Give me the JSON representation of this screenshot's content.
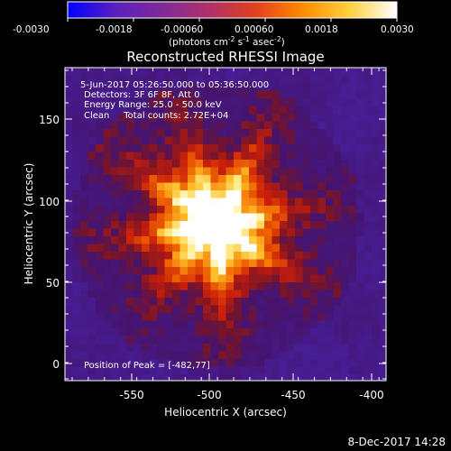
{
  "colorbar": {
    "ticks": [
      "-0.0030",
      "-0.0018",
      "-0.00060",
      "0.00060",
      "0.0018",
      "0.0030"
    ],
    "unit_prefix": "(photons cm",
    "unit_exp1": "-2",
    "unit_mid": " s",
    "unit_exp2": "-1",
    "unit_mid2": " asec",
    "unit_exp3": "-2",
    "unit_suffix": ")",
    "colors": [
      "#0000ff",
      "#5b1fbf",
      "#7f2a98",
      "#b0306a",
      "#e0401c",
      "#ff8c00",
      "#ffd040",
      "#ffffff"
    ]
  },
  "title": "Reconstructed RHESSI Image",
  "annotations": {
    "time_range": "5-Jun-2017 05:26:50.000 to 05:36:50.000",
    "detectors": "Detectors: 3F 6F 8F, Att 0",
    "energy": "Energy Range: 25.0 - 50.0 keV",
    "clean": "Clean     Total counts: 2.72E+04",
    "peak": "Position of Peak = [-482,77]"
  },
  "axes": {
    "xlabel": "Heliocentric X (arcsec)",
    "ylabel": "Heliocentric Y (arcsec)",
    "xticks": [
      "-550",
      "-500",
      "-450",
      "-400"
    ],
    "yticks": [
      "0",
      "50",
      "100",
      "150"
    ]
  },
  "footer": {
    "date": "8-Dec-2017 14:28"
  }
}
